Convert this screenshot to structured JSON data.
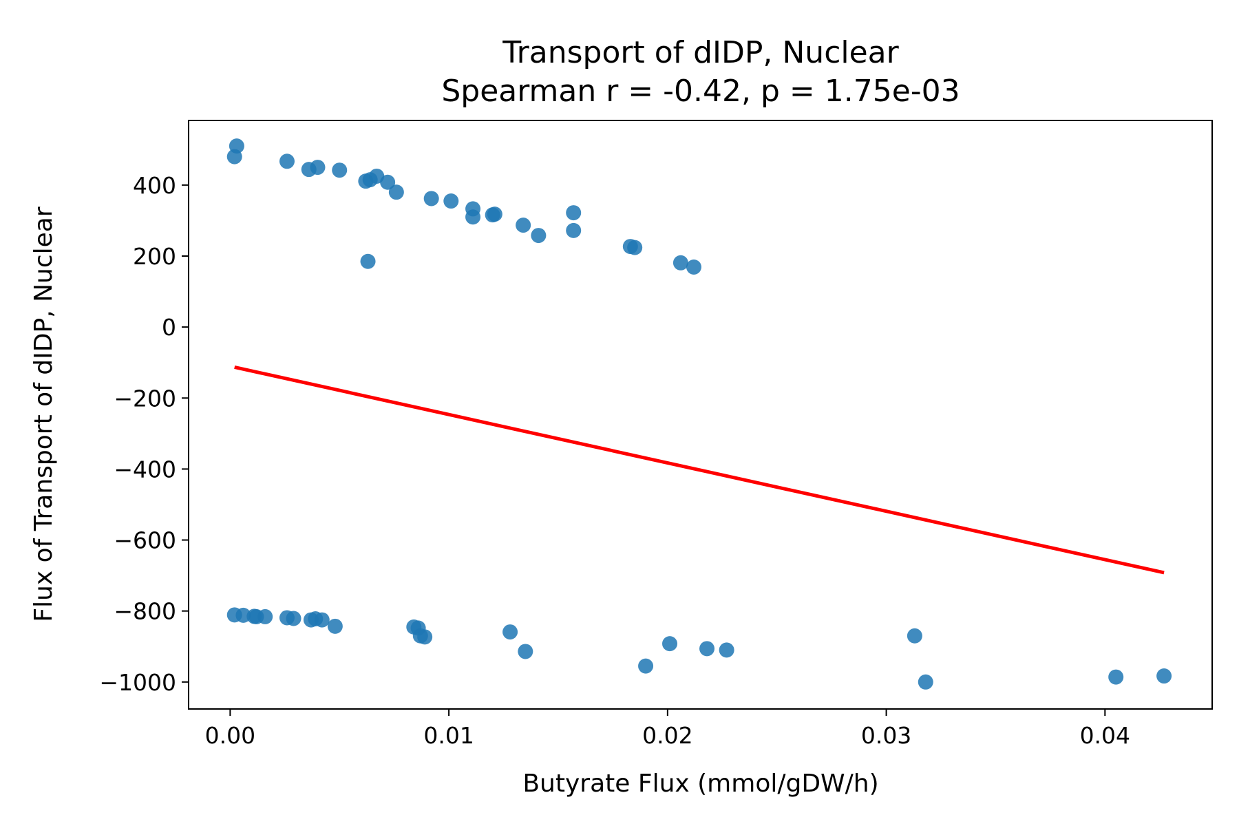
{
  "chart_data": {
    "type": "scatter",
    "title": "Transport of dIDP, Nuclear",
    "subtitle": "Spearman r = -0.42, p = 1.75e-03",
    "xlabel": "Butyrate Flux (mmol/gDW/h)",
    "ylabel": "Flux of Transport of dIDP, Nuclear",
    "xlim": [
      -0.0019,
      0.0449
    ],
    "ylim": [
      -1076,
      582
    ],
    "xticks": [
      0.0,
      0.01,
      0.02,
      0.03,
      0.04
    ],
    "xtick_labels": [
      "0.00",
      "0.01",
      "0.02",
      "0.03",
      "0.04"
    ],
    "yticks": [
      400,
      200,
      0,
      -200,
      -400,
      -600,
      -800,
      -1000
    ],
    "ytick_labels": [
      "400",
      "200",
      "0",
      "−200",
      "−400",
      "−600",
      "−800",
      "−1000"
    ],
    "grid": false,
    "point_color": "#1f77b4",
    "line_color": "#ff0000",
    "series": [
      {
        "type": "scatter",
        "points": [
          [
            0.0003,
            510
          ],
          [
            0.0002,
            480
          ],
          [
            0.0026,
            467
          ],
          [
            0.0036,
            444
          ],
          [
            0.004,
            450
          ],
          [
            0.005,
            442
          ],
          [
            0.0062,
            411
          ],
          [
            0.0064,
            415
          ],
          [
            0.0067,
            425
          ],
          [
            0.0072,
            408
          ],
          [
            0.0076,
            380
          ],
          [
            0.0063,
            185
          ],
          [
            0.0092,
            362
          ],
          [
            0.0101,
            355
          ],
          [
            0.0111,
            333
          ],
          [
            0.0111,
            310
          ],
          [
            0.012,
            316
          ],
          [
            0.0121,
            318
          ],
          [
            0.0134,
            287
          ],
          [
            0.0141,
            258
          ],
          [
            0.0157,
            322
          ],
          [
            0.0157,
            272
          ],
          [
            0.0183,
            227
          ],
          [
            0.0185,
            224
          ],
          [
            0.0206,
            181
          ],
          [
            0.0212,
            169
          ],
          [
            0.0002,
            -811
          ],
          [
            0.0006,
            -812
          ],
          [
            0.0011,
            -815
          ],
          [
            0.0012,
            -816
          ],
          [
            0.0016,
            -816
          ],
          [
            0.0026,
            -819
          ],
          [
            0.0029,
            -821
          ],
          [
            0.0037,
            -825
          ],
          [
            0.0039,
            -822
          ],
          [
            0.0042,
            -825
          ],
          [
            0.0048,
            -843
          ],
          [
            0.0084,
            -845
          ],
          [
            0.0086,
            -848
          ],
          [
            0.0087,
            -870
          ],
          [
            0.0089,
            -873
          ],
          [
            0.0128,
            -859
          ],
          [
            0.0135,
            -914
          ],
          [
            0.019,
            -955
          ],
          [
            0.0201,
            -892
          ],
          [
            0.0218,
            -906
          ],
          [
            0.0227,
            -910
          ],
          [
            0.0313,
            -870
          ],
          [
            0.0318,
            -1000
          ],
          [
            0.0405,
            -986
          ],
          [
            0.0427,
            -983
          ]
        ]
      },
      {
        "type": "line",
        "points": [
          [
            0.0002,
            -113
          ],
          [
            0.0427,
            -692
          ]
        ]
      }
    ]
  }
}
